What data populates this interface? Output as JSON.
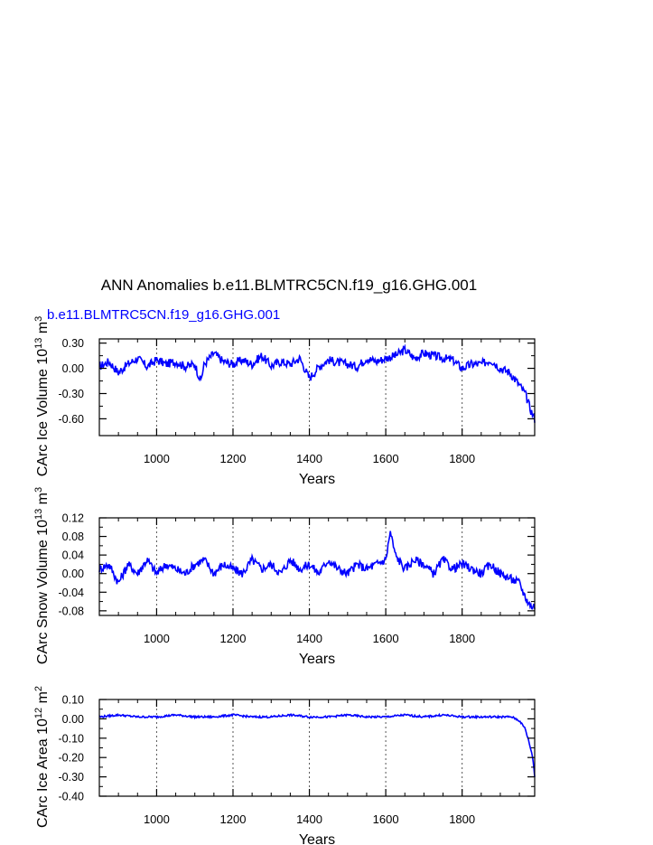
{
  "title": "ANN Anomalies b.e11.BLMTRC5CN.f19_g16.GHG.001",
  "colors": {
    "line": "#0000ff",
    "title": "#000000",
    "axis": "#000000",
    "grid": "#555555"
  },
  "chart_data": [
    {
      "type": "line",
      "legend_label": "b.e11.BLMTRC5CN.f19_g16.GHG.001",
      "ylabel_main": "CArc Ice Volume 10",
      "ylabel_exp": "13",
      "ylabel_unit": " m",
      "ylabel_unit_exp": "3",
      "xlabel": "Years",
      "xlim": [
        850,
        1990
      ],
      "ylim": [
        -0.8,
        0.35
      ],
      "xticks": [
        1000,
        1200,
        1400,
        1600,
        1800
      ],
      "xtick_labels": [
        "1000",
        "1200",
        "1400",
        "1600",
        "1800"
      ],
      "yticks": [
        0.3,
        0.0,
        -0.3,
        -0.6
      ],
      "ytick_labels": [
        "0.30",
        "0.00",
        "-0.30",
        "-0.60"
      ],
      "grid": "vertical dotted at major x ticks",
      "series": [
        {
          "color": "#0000ff",
          "x": [
            850,
            875,
            900,
            925,
            950,
            975,
            1000,
            1025,
            1050,
            1075,
            1100,
            1115,
            1125,
            1150,
            1175,
            1200,
            1225,
            1250,
            1275,
            1300,
            1325,
            1350,
            1375,
            1400,
            1425,
            1450,
            1475,
            1500,
            1525,
            1550,
            1575,
            1600,
            1625,
            1650,
            1675,
            1700,
            1725,
            1750,
            1775,
            1800,
            1825,
            1850,
            1875,
            1900,
            1925,
            1950,
            1965,
            1980,
            1990
          ],
          "y": [
            0.02,
            0.08,
            -0.05,
            0.05,
            0.12,
            0.02,
            0.1,
            0.05,
            0.08,
            0.02,
            0.05,
            -0.15,
            0.05,
            0.18,
            0.08,
            0.05,
            0.1,
            0.05,
            0.15,
            0.03,
            0.08,
            0.05,
            0.12,
            -0.12,
            0.02,
            0.1,
            0.07,
            0.05,
            0.02,
            0.12,
            0.08,
            0.12,
            0.15,
            0.22,
            0.12,
            0.18,
            0.15,
            0.12,
            0.1,
            0.0,
            0.05,
            0.05,
            0.1,
            0.0,
            -0.05,
            -0.2,
            -0.3,
            -0.5,
            -0.6
          ]
        }
      ]
    },
    {
      "type": "line",
      "ylabel_main": "CArc Snow Volume 10",
      "ylabel_exp": "13",
      "ylabel_unit": " m",
      "ylabel_unit_exp": "3",
      "xlabel": "Years",
      "xlim": [
        850,
        1990
      ],
      "ylim": [
        -0.09,
        0.12
      ],
      "xticks": [
        1000,
        1200,
        1400,
        1600,
        1800
      ],
      "xtick_labels": [
        "1000",
        "1200",
        "1400",
        "1600",
        "1800"
      ],
      "yticks": [
        0.12,
        0.08,
        0.04,
        0.0,
        -0.04,
        -0.08
      ],
      "ytick_labels": [
        "0.12",
        "0.08",
        "0.04",
        "0.00",
        "-0.04",
        "-0.08"
      ],
      "grid": "vertical dotted at major x ticks",
      "series": [
        {
          "color": "#0000ff",
          "x": [
            850,
            875,
            900,
            925,
            950,
            975,
            1000,
            1025,
            1050,
            1075,
            1100,
            1125,
            1150,
            1175,
            1200,
            1225,
            1250,
            1275,
            1300,
            1325,
            1350,
            1375,
            1400,
            1425,
            1450,
            1475,
            1500,
            1525,
            1550,
            1575,
            1600,
            1612,
            1625,
            1650,
            1675,
            1700,
            1725,
            1750,
            1775,
            1800,
            1825,
            1850,
            1875,
            1900,
            1925,
            1950,
            1965,
            1980,
            1990
          ],
          "y": [
            0.01,
            0.02,
            -0.02,
            0.02,
            0.0,
            0.03,
            0.0,
            0.02,
            0.01,
            0.0,
            0.02,
            0.03,
            0.0,
            0.02,
            0.01,
            0.0,
            0.03,
            0.01,
            0.02,
            0.0,
            0.03,
            0.01,
            0.02,
            0.0,
            0.03,
            0.01,
            0.0,
            0.02,
            0.01,
            0.02,
            0.03,
            0.09,
            0.04,
            0.01,
            0.03,
            0.02,
            0.0,
            0.03,
            0.01,
            0.02,
            0.01,
            0.0,
            0.02,
            0.0,
            -0.01,
            -0.02,
            -0.05,
            -0.07,
            -0.07
          ]
        }
      ]
    },
    {
      "type": "line",
      "ylabel_main": "CArc Ice Area 10",
      "ylabel_exp": "12",
      "ylabel_unit": " m",
      "ylabel_unit_exp": "2",
      "xlabel": "Years",
      "xlim": [
        850,
        1990
      ],
      "ylim": [
        -0.4,
        0.1
      ],
      "xticks": [
        1000,
        1200,
        1400,
        1600,
        1800
      ],
      "xtick_labels": [
        "1000",
        "1200",
        "1400",
        "1600",
        "1800"
      ],
      "yticks": [
        0.1,
        0.0,
        -0.1,
        -0.2,
        -0.3,
        -0.4
      ],
      "ytick_labels": [
        "0.10",
        "0.00",
        "-0.10",
        "-0.20",
        "-0.30",
        "-0.40"
      ],
      "grid": "vertical dotted at major x ticks",
      "series": [
        {
          "color": "#0000ff",
          "x": [
            850,
            900,
            950,
            1000,
            1050,
            1100,
            1150,
            1200,
            1250,
            1300,
            1350,
            1400,
            1450,
            1500,
            1550,
            1600,
            1650,
            1700,
            1750,
            1800,
            1850,
            1900,
            1930,
            1950,
            1965,
            1975,
            1985,
            1990
          ],
          "y": [
            0.01,
            0.02,
            0.01,
            0.01,
            0.02,
            0.01,
            0.01,
            0.02,
            0.01,
            0.01,
            0.02,
            0.01,
            0.01,
            0.02,
            0.01,
            0.01,
            0.02,
            0.01,
            0.02,
            0.01,
            0.01,
            0.01,
            0.01,
            -0.01,
            -0.05,
            -0.12,
            -0.2,
            -0.3
          ]
        }
      ]
    }
  ]
}
